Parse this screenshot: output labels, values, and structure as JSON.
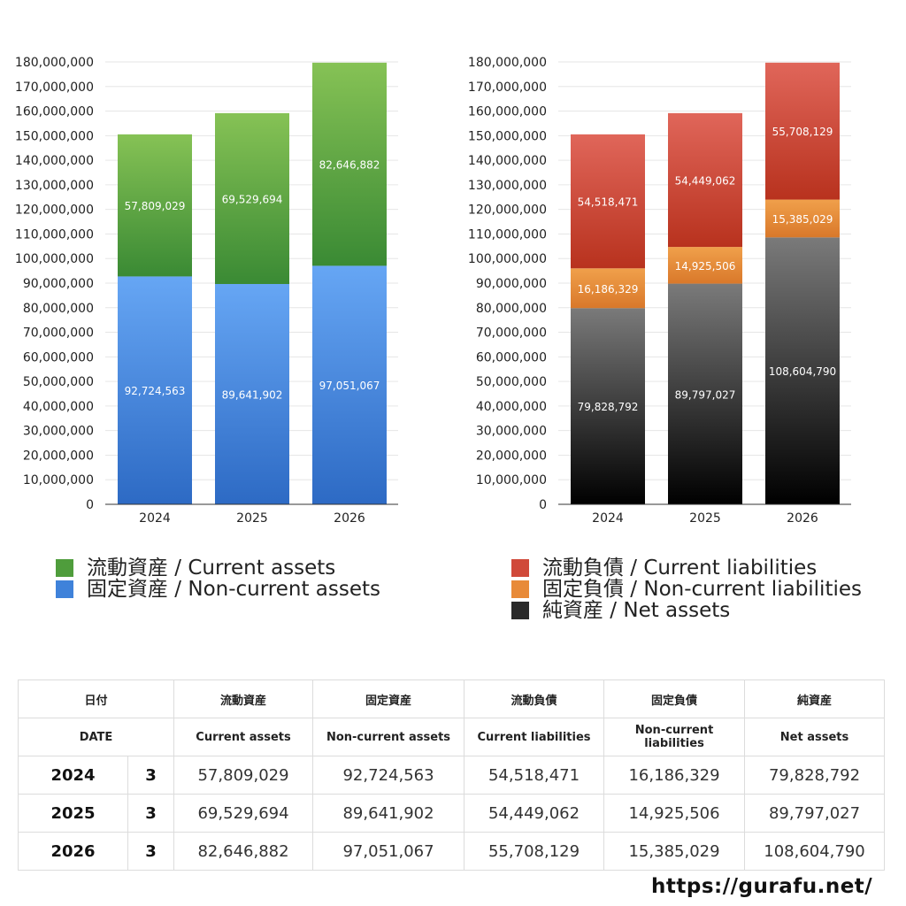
{
  "chart_data": [
    {
      "type": "bar",
      "stacked": true,
      "categories": [
        "2024",
        "2025",
        "2026"
      ],
      "ylim": [
        0,
        180000000
      ],
      "ytick_step": 10000000,
      "grid": true,
      "series": [
        {
          "name": "固定資産 / Non-current assets",
          "values": [
            92724563,
            89641902,
            97051067
          ],
          "color_top": "#66a6f4",
          "color_bottom": "#2d6ac4"
        },
        {
          "name": "流動資産 / Current assets",
          "values": [
            57809029,
            69529694,
            82646882
          ],
          "color_top": "#86c255",
          "color_bottom": "#3a8a34"
        }
      ]
    },
    {
      "type": "bar",
      "stacked": true,
      "categories": [
        "2024",
        "2025",
        "2026"
      ],
      "ylim": [
        0,
        180000000
      ],
      "ytick_step": 10000000,
      "grid": true,
      "series": [
        {
          "name": "純資産 / Net assets",
          "values": [
            79828792,
            89797027,
            108604790
          ],
          "color_top": "#7a7a7a",
          "color_bottom": "#000000"
        },
        {
          "name": "固定負債 / Non-current liabilities",
          "values": [
            16186329,
            14925506,
            15385029
          ],
          "color_top": "#f0a04b",
          "color_bottom": "#d9782a"
        },
        {
          "name": "流動負債 / Current liabilities",
          "values": [
            54518471,
            54449062,
            55708129
          ],
          "color_top": "#e0665a",
          "color_bottom": "#b8321e"
        }
      ]
    }
  ],
  "legend_left": [
    {
      "label": "流動資産 / Current assets",
      "color": "#4f9d3c"
    },
    {
      "label": "固定資産 / Non-current assets",
      "color": "#3f82da"
    }
  ],
  "legend_right": [
    {
      "label": "流動負債 / Current liabilities",
      "color": "#d0493a"
    },
    {
      "label": "固定負債 / Non-current liabilities",
      "color": "#e88a38"
    },
    {
      "label": "純資産 / Net assets",
      "color": "#2a2a2a"
    }
  ],
  "table": {
    "header_jp": [
      "日付",
      "流動資産",
      "固定資産",
      "流動負債",
      "固定負債",
      "純資産"
    ],
    "header_en": [
      "DATE",
      "Current assets",
      "Non-current assets",
      "Current liabilities",
      "Non-current liabilities",
      "Net assets"
    ],
    "rows": [
      {
        "year": "2024",
        "month": "3",
        "values": [
          "57,809,029",
          "92,724,563",
          "54,518,471",
          "16,186,329",
          "79,828,792"
        ]
      },
      {
        "year": "2025",
        "month": "3",
        "values": [
          "69,529,694",
          "89,641,902",
          "54,449,062",
          "14,925,506",
          "89,797,027"
        ]
      },
      {
        "year": "2026",
        "month": "3",
        "values": [
          "82,646,882",
          "97,051,067",
          "55,708,129",
          "15,385,029",
          "108,604,790"
        ]
      }
    ]
  },
  "footer": {
    "url": "https://gurafu.net/"
  }
}
